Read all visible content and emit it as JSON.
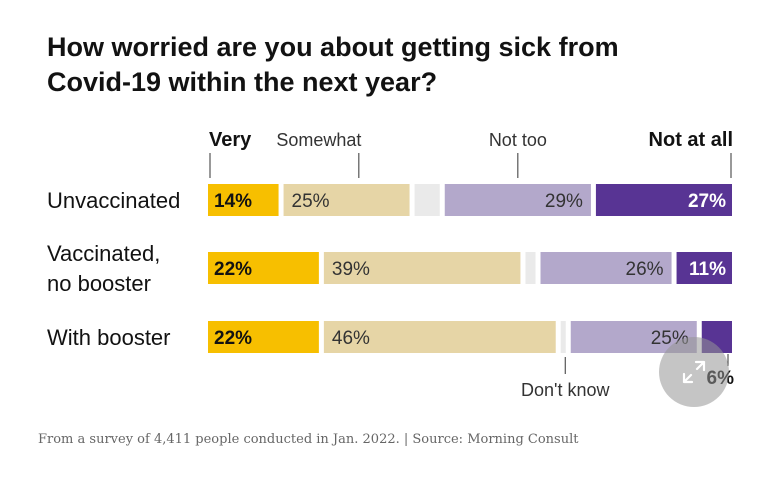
{
  "title_lines": [
    "How worried are you about getting sick from",
    "Covid-19 within the next year?"
  ],
  "source": "From a survey of 4,411 people conducted in Jan. 2022. | Source: Morning Consult",
  "colors": {
    "very": "#f7bf00",
    "somewhat": "#e6d5a6",
    "dont_know": "#eaeaea",
    "not_too": "#b3a8cb",
    "not_at_all": "#583494"
  },
  "chart_data": {
    "type": "bar",
    "orientation": "horizontal",
    "stacked": true,
    "title": "How worried are you about getting sick from Covid-19 within the next year?",
    "categories": [
      "Unvaccinated",
      "Vaccinated, no booster",
      "With booster"
    ],
    "category_labels": [
      [
        "Unvaccinated"
      ],
      [
        "Vaccinated,",
        "no booster"
      ],
      [
        "With booster"
      ]
    ],
    "legend": [
      "Very",
      "Somewhat",
      "Not too",
      "Not at all"
    ],
    "series": [
      {
        "name": "Very",
        "values": [
          14,
          22,
          22
        ],
        "labels": [
          "14%",
          "22%",
          "22%"
        ]
      },
      {
        "name": "Somewhat",
        "values": [
          25,
          39,
          46
        ],
        "labels": [
          "25%",
          "39%",
          "46%"
        ]
      },
      {
        "name": "Don't know",
        "values": [
          5,
          2,
          1
        ],
        "labels": [
          "",
          "",
          ""
        ]
      },
      {
        "name": "Not too",
        "values": [
          29,
          26,
          25
        ],
        "labels": [
          "29%",
          "26%",
          "25%"
        ]
      },
      {
        "name": "Not at all",
        "values": [
          27,
          11,
          6
        ],
        "labels": [
          "27%",
          "11%",
          "6%"
        ]
      }
    ],
    "annotation": "Don't know",
    "xlim": [
      0,
      100
    ]
  }
}
